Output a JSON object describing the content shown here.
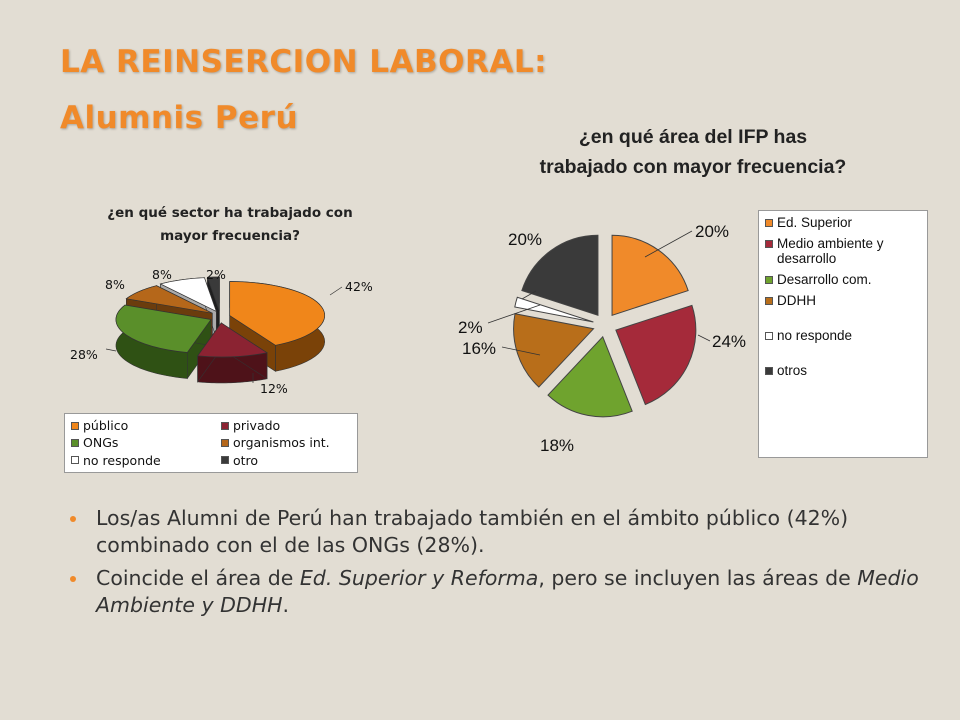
{
  "title_line1": "LA REINSERCION LABORAL:",
  "title_line2": "Alumnis Perú",
  "chart_data": [
    {
      "type": "pie",
      "title": "¿en qué sector ha trabajado con mayor frecuencia?",
      "title_lines": [
        "¿en qué sector ha trabajado con",
        "mayor frecuencia?"
      ],
      "categories": [
        "público",
        "privado",
        "ONGs",
        "organismos int.",
        "no responde",
        "otro"
      ],
      "values": [
        42,
        12,
        28,
        8,
        8,
        2
      ],
      "data_labels": [
        "42%",
        "12%",
        "28%",
        "8%",
        "8%",
        "2%"
      ],
      "colors": [
        "#f0861a",
        "#8b2332",
        "#5a8f2a",
        "#b5671a",
        "#ffffff",
        "#3a3a3a"
      ],
      "side_colors": [
        "#7a4208",
        "#4e1219",
        "#2f5114",
        "#6b3c0d",
        "#aaaaaa",
        "#1f1f1f"
      ],
      "style": "3d exploded",
      "legend_position": "bottom"
    },
    {
      "type": "pie",
      "title": "¿en qué área del IFP has trabajado con mayor frecuencia?",
      "title_lines": [
        "¿en qué área del IFP has",
        "trabajado con mayor frecuencia?"
      ],
      "categories": [
        "Ed. Superior",
        "Medio ambiente y desarrollo",
        "Desarrollo com.",
        "DDHH",
        "no responde",
        "otros"
      ],
      "legend_lines": [
        [
          "Ed. Superior"
        ],
        [
          "Medio ambiente y",
          "desarrollo"
        ],
        [
          "Desarrollo com."
        ],
        [
          "DDHH"
        ],
        [
          "no responde"
        ],
        [
          "otros"
        ]
      ],
      "values": [
        20,
        24,
        18,
        16,
        2,
        20
      ],
      "data_labels": [
        "20%",
        "24%",
        "18%",
        "16%",
        "2%",
        "20%"
      ],
      "colors": [
        "#f08a2a",
        "#a52a3a",
        "#6fa32e",
        "#b86e1a",
        "#ffffff",
        "#3a3a3a"
      ],
      "style": "exploded",
      "legend_position": "right"
    }
  ],
  "bullets": [
    {
      "parts": [
        {
          "text": "Los/as  Alumni de Perú han trabajado también en el ámbito público (42%) combinado con el de las ONGs (28%).",
          "italic": false
        }
      ]
    },
    {
      "parts": [
        {
          "text": " Coincide el área de ",
          "italic": false
        },
        {
          "text": "Ed. Superior y Reforma",
          "italic": true
        },
        {
          "text": ", pero se incluyen  las áreas de ",
          "italic": false
        },
        {
          "text": "Medio Ambiente y DDHH",
          "italic": true
        },
        {
          "text": ".",
          "italic": false
        }
      ]
    }
  ]
}
